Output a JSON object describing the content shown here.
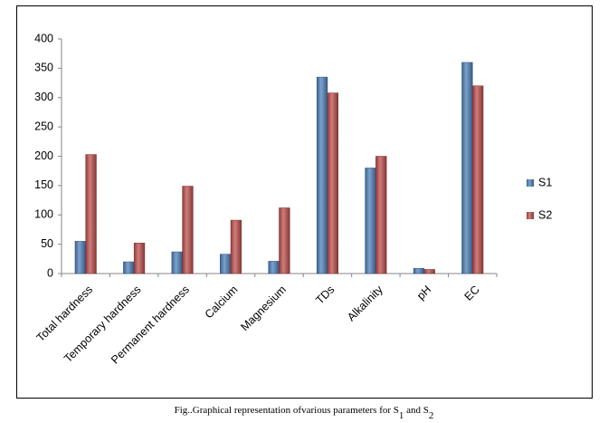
{
  "chart_data": {
    "type": "bar",
    "categories": [
      "Total hardness",
      "Temporary hardness",
      "Permanent hardness",
      "Calcium",
      "Magnesium",
      "TDs",
      "Alkalinity",
      "pH",
      "EC"
    ],
    "series": [
      {
        "name": "S1",
        "color": "#4f81bd",
        "values": [
          55,
          20,
          37,
          33,
          21,
          335,
          180,
          9,
          360
        ]
      },
      {
        "name": "S2",
        "color": "#c0504d",
        "values": [
          203,
          52,
          149,
          91,
          112,
          308,
          200,
          7,
          320
        ]
      }
    ],
    "ylim": [
      0,
      400
    ],
    "yticks": [
      0,
      50,
      100,
      150,
      200,
      250,
      300,
      350,
      400
    ],
    "grid": false,
    "legend": "right",
    "caption": [
      "Fig..Graphical representation ofvarious parameters for S",
      "1",
      " and S",
      "2"
    ]
  }
}
